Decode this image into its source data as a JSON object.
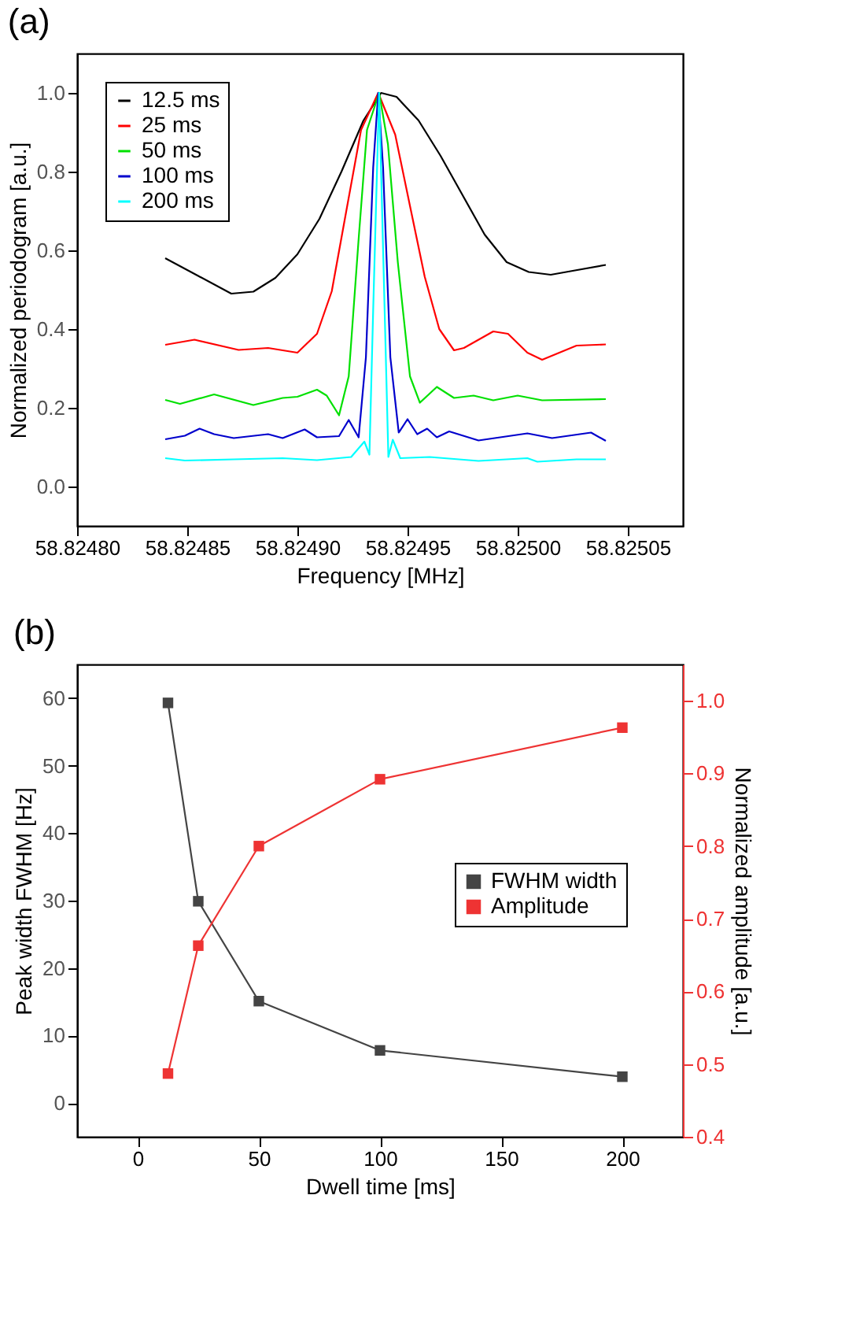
{
  "chart_data": [
    {
      "type": "line",
      "title": "(a)",
      "xlabel": "Frequency [MHz]",
      "ylabel": "Normalized periodogram [a.u.]",
      "legend": "top left",
      "grid": false,
      "line_style": "solid",
      "xlim": [
        58.8248,
        58.825075
      ],
      "xticks": [
        {
          "value": 58.8248,
          "label": "58.82480"
        },
        58.82485,
        {
          "value": 58.8249,
          "label": "58.82490"
        },
        58.82495,
        {
          "value": 58.825,
          "label": "58.82500"
        },
        58.82505
      ],
      "ylim": [
        -0.1,
        1.1
      ],
      "yticks": [
        {
          "value": 0,
          "label": "0.0"
        },
        0.2,
        0.4,
        0.6,
        0.8,
        {
          "value": 1,
          "label": "1.0"
        }
      ],
      "series": [
        {
          "name": "12.5 ms",
          "color": "#000000",
          "x": [
            58.82484,
            58.824855,
            58.82487,
            58.82488,
            58.82489,
            58.8249,
            58.82491,
            58.82492,
            58.82493,
            58.824938,
            58.824945,
            58.824955,
            58.824965,
            58.824975,
            58.824985,
            58.824995,
            58.825005,
            58.825015,
            58.825025,
            58.82504
          ],
          "values": [
            0.58,
            0.535,
            0.49,
            0.495,
            0.53,
            0.59,
            0.68,
            0.8,
            0.93,
            1.0,
            0.99,
            0.93,
            0.84,
            0.74,
            0.64,
            0.57,
            0.545,
            0.538,
            0.548,
            0.563
          ]
        },
        {
          "name": "25 ms",
          "color": "#ff0000",
          "x": [
            58.82484,
            58.8248533,
            58.8248733,
            58.8248867,
            58.8249,
            58.8249089,
            58.8249156,
            58.8249222,
            58.8249289,
            58.8249367,
            58.8249444,
            58.8249511,
            58.8249578,
            58.8249644,
            58.8249711,
            58.8249756,
            58.8249889,
            58.8249956,
            58.8250044,
            58.8250111,
            58.8250267,
            58.82504
          ],
          "values": [
            0.36,
            0.373,
            0.347,
            0.352,
            0.34,
            0.388,
            0.496,
            0.7,
            0.906,
            1.0,
            0.894,
            0.713,
            0.533,
            0.4,
            0.346,
            0.352,
            0.394,
            0.388,
            0.34,
            0.322,
            0.358,
            0.361
          ]
        },
        {
          "name": "50 ms",
          "color": "#00e000",
          "x": [
            58.82484,
            58.8248467,
            58.8248622,
            58.82488,
            58.8248933,
            58.8249,
            58.8249089,
            58.8249133,
            58.8249189,
            58.8249233,
            58.8249278,
            58.8249316,
            58.8249371,
            58.8249411,
            58.8249456,
            58.8249511,
            58.8249556,
            58.8249633,
            58.8249711,
            58.82498,
            58.8249889,
            58.825,
            58.8250111,
            58.82504
          ],
          "values": [
            0.22,
            0.21,
            0.234,
            0.207,
            0.225,
            0.228,
            0.246,
            0.231,
            0.181,
            0.28,
            0.629,
            0.906,
            1.0,
            0.87,
            0.569,
            0.28,
            0.213,
            0.253,
            0.225,
            0.231,
            0.219,
            0.231,
            0.219,
            0.222
          ]
        },
        {
          "name": "100 ms",
          "color": "#0000cc",
          "x": [
            58.82484,
            58.8248489,
            58.8248556,
            58.8248622,
            58.8248711,
            58.8248867,
            58.8248933,
            58.8249033,
            58.8249089,
            58.8249189,
            58.8249233,
            58.8249278,
            58.8249311,
            58.8249344,
            58.8249367,
            58.8249389,
            58.8249422,
            58.824946,
            58.82495,
            58.8249544,
            58.8249589,
            58.8249633,
            58.8249689,
            58.8249822,
            58.8250044,
            58.8250156,
            58.8250333,
            58.82504
          ],
          "values": [
            0.12,
            0.129,
            0.147,
            0.133,
            0.123,
            0.133,
            0.123,
            0.145,
            0.125,
            0.128,
            0.169,
            0.125,
            0.328,
            0.81,
            1.0,
            0.81,
            0.328,
            0.137,
            0.171,
            0.133,
            0.147,
            0.125,
            0.14,
            0.117,
            0.135,
            0.123,
            0.137,
            0.116
          ]
        },
        {
          "name": "200 ms",
          "color": "#00ffff",
          "x": [
            58.82484,
            58.8248489,
            58.8248711,
            58.8248933,
            58.8249089,
            58.8249244,
            58.8249304,
            58.8249327,
            58.8249344,
            58.8249371,
            58.8249396,
            58.8249413,
            58.8249433,
            58.8249467,
            58.82496,
            58.8249822,
            58.8250044,
            58.8250089,
            58.8250267,
            58.82504
          ],
          "values": [
            0.072,
            0.066,
            0.069,
            0.072,
            0.067,
            0.075,
            0.114,
            0.081,
            0.448,
            1.0,
            0.448,
            0.075,
            0.119,
            0.072,
            0.075,
            0.065,
            0.072,
            0.063,
            0.069,
            0.069
          ]
        }
      ]
    },
    {
      "type": "line",
      "title": "(b)",
      "xlabel": "Dwell time [ms]",
      "ylabel": "Peak width FWHM [Hz]",
      "y2label": "Normalized amplitude [a.u.]",
      "legend": "right",
      "grid": false,
      "marker": "square",
      "line_style": "solid",
      "xlim": [
        -25,
        225
      ],
      "xticks": [
        0,
        50,
        100,
        150,
        200
      ],
      "ylim": [
        -5,
        65
      ],
      "yticks": [
        0,
        10,
        20,
        30,
        40,
        50,
        60
      ],
      "y2lim": [
        0.4,
        1.05
      ],
      "y2ticks": [
        0.4,
        0.5,
        0.6,
        0.7,
        0.8,
        0.9,
        {
          "value": 1,
          "label": "1.0"
        }
      ],
      "series": [
        {
          "name": "FWHM width",
          "color": "#444444",
          "x": [
            12.5,
            25,
            50,
            100,
            200
          ],
          "values": [
            59.3,
            29.9,
            15.1,
            7.8,
            3.9
          ]
        },
        {
          "name": "Amplitude",
          "color": "#ee3333",
          "axis": "y2",
          "x": [
            12.5,
            25,
            50,
            100,
            200
          ],
          "values": [
            0.487,
            0.663,
            0.8,
            0.892,
            0.963
          ]
        }
      ]
    }
  ]
}
